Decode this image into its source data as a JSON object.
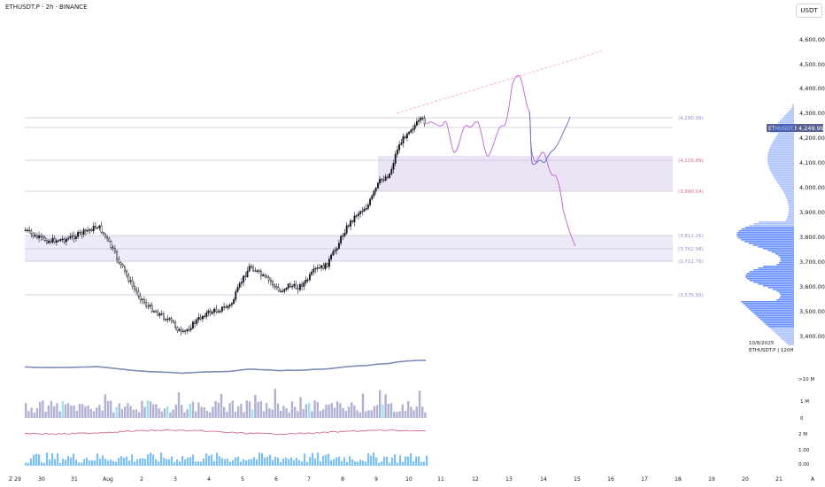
{
  "header": {
    "symbol_line": "ETHUSDT.P · 2h · BINANCE",
    "currency_button": "USDT"
  },
  "price_axis": {
    "labels": [
      "4,600.00",
      "4,500.00",
      "4,400.00",
      "4,300.00",
      "4,200.00",
      "4,100.00",
      "4,000.00",
      "3,900.00",
      "3,800.00",
      "3,700.00",
      "3,600.00",
      "3,500.00",
      "3,400.00"
    ],
    "last_price_badge": {
      "symbol": "ETHUSDT.P",
      "price": "4,249.99"
    }
  },
  "level_labels": [
    "(4,290.09)",
    "(4,116.89)",
    "(3,990.54)",
    "(3,812.26)",
    "(3,762.98)",
    "(3,712.76)",
    "(3,576.93)"
  ],
  "profile_caption": {
    "date": "10/8/2025",
    "label": "ETHUSDT.P | 120H"
  },
  "indicator_axes": {
    "volume_top": ">10 M",
    "volume_1m": "1 M",
    "volume_0": "0",
    "osc_top": "2 M",
    "osc_mid": "1.00",
    "osc_low": "0.00"
  },
  "time_axis": {
    "labels": [
      "29",
      "30",
      "31",
      "Aug",
      "2",
      "3",
      "4",
      "5",
      "6",
      "7",
      "8",
      "9",
      "10",
      "11",
      "12",
      "13",
      "14",
      "15",
      "16",
      "17",
      "18",
      "19",
      "20",
      "21"
    ],
    "left_icon": "Z",
    "right_icon": "A"
  },
  "colors": {
    "up": "#131722",
    "down": "#ffffff",
    "projection_up": "#7e57c2",
    "projection_down": "#c05fd6",
    "zone": "#d1c4e9",
    "level_line": "#c5c9d4",
    "trendline": "#f7a6b8",
    "profile": "#2962ff"
  }
}
